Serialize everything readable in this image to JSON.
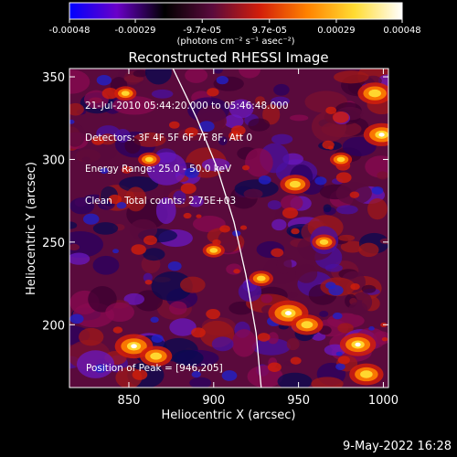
{
  "chart_data": {
    "type": "heatmap",
    "title": "Reconstructed RHESSI Image",
    "xlabel": "Heliocentric X (arcsec)",
    "ylabel": "Heliocentric Y (arcsec)",
    "xlim": [
      815,
      1003
    ],
    "ylim": [
      162,
      355
    ],
    "x_ticks": [
      850,
      900,
      950,
      1000
    ],
    "y_ticks": [
      200,
      250,
      300,
      350
    ],
    "colorbar": {
      "range": [
        -0.00048,
        0.00048
      ],
      "tick_values": [
        -0.00048,
        -0.00029,
        -9.7e-05,
        9.7e-05,
        0.00029,
        0.00048
      ],
      "tick_labels": [
        "-0.00048",
        "-0.00029",
        "-9.7e-05",
        "9.7e-05",
        "0.00029",
        "0.00048"
      ],
      "unit_label": "(photons cm⁻² s⁻¹ asec⁻²)",
      "colors": [
        "#0000ff",
        "#6a00c8",
        "#000000",
        "#5a0a3c",
        "#d21e0a",
        "#ff8200",
        "#ffdc32",
        "#ffffff"
      ]
    },
    "peak": {
      "x": 946,
      "y": 205
    },
    "limb_curve": [
      [
        876,
        355
      ],
      [
        890,
        325
      ],
      [
        902,
        295
      ],
      [
        912,
        262
      ],
      [
        919,
        230
      ],
      [
        925,
        195
      ],
      [
        928,
        162
      ]
    ],
    "bright_sources": [
      {
        "x": 853,
        "y": 187,
        "intensity": 0.95
      },
      {
        "x": 866,
        "y": 181,
        "intensity": 0.8
      },
      {
        "x": 944,
        "y": 207,
        "intensity": 1.0
      },
      {
        "x": 955,
        "y": 200,
        "intensity": 0.8
      },
      {
        "x": 985,
        "y": 188,
        "intensity": 0.9
      },
      {
        "x": 990,
        "y": 170,
        "intensity": 0.85
      },
      {
        "x": 995,
        "y": 340,
        "intensity": 0.85
      },
      {
        "x": 999,
        "y": 315,
        "intensity": 0.9
      },
      {
        "x": 948,
        "y": 285,
        "intensity": 0.75
      },
      {
        "x": 928,
        "y": 228,
        "intensity": 0.6
      },
      {
        "x": 900,
        "y": 245,
        "intensity": 0.55
      },
      {
        "x": 848,
        "y": 340,
        "intensity": 0.55
      },
      {
        "x": 862,
        "y": 300,
        "intensity": 0.55
      },
      {
        "x": 965,
        "y": 250,
        "intensity": 0.6
      },
      {
        "x": 975,
        "y": 300,
        "intensity": 0.55
      }
    ]
  },
  "annotation": {
    "time_range": "21-Jul-2010 05:44:20.000 to 05:46:48.000",
    "detectors": "Detectors: 3F 4F 5F 6F 7F 8F, Att 0",
    "energy_range": "Energy Range: 25.0 - 50.0 keV",
    "clean_prefix": "Clean",
    "total_counts": "Total counts: 2.75E+03",
    "peak_text": "Position of Peak = [946,205]"
  },
  "footer": {
    "date": "9-May-2022 16:28"
  }
}
